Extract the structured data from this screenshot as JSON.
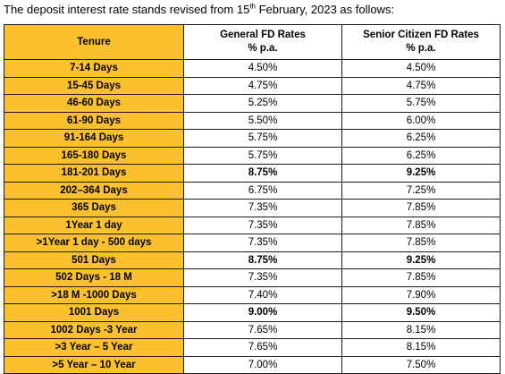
{
  "intro": {
    "before": "The deposit interest rate stands revised from 15",
    "sup": "th",
    "after": " February, 2023 as follows:"
  },
  "table": {
    "headers": {
      "tenure": "Tenure",
      "general_line1": "General FD Rates",
      "general_line2": "% p.a.",
      "senior_line1": "Senior Citizen FD Rates",
      "senior_line2": "% p.a."
    },
    "rows": [
      {
        "tenure": "7-14 Days",
        "general": "4.50%",
        "senior": "4.50%",
        "bold": false
      },
      {
        "tenure": "15-45 Days",
        "general": "4.75%",
        "senior": "4.75%",
        "bold": false
      },
      {
        "tenure": "46-60 Days",
        "general": "5.25%",
        "senior": "5.75%",
        "bold": false
      },
      {
        "tenure": "61-90 Days",
        "general": "5.50%",
        "senior": "6.00%",
        "bold": false
      },
      {
        "tenure": "91-164 Days",
        "general": "5.75%",
        "senior": "6.25%",
        "bold": false
      },
      {
        "tenure": "165-180 Days",
        "general": "5.75%",
        "senior": "6.25%",
        "bold": false
      },
      {
        "tenure": "181-201 Days",
        "general": "8.75%",
        "senior": "9.25%",
        "bold": true
      },
      {
        "tenure": "202–364 Days",
        "general": "6.75%",
        "senior": "7.25%",
        "bold": false
      },
      {
        "tenure": "365 Days",
        "general": "7.35%",
        "senior": "7.85%",
        "bold": false
      },
      {
        "tenure": "1Year 1 day",
        "general": "7.35%",
        "senior": "7.85%",
        "bold": false
      },
      {
        "tenure": ">1Year 1 day - 500 days",
        "general": "7.35%",
        "senior": "7.85%",
        "bold": false
      },
      {
        "tenure": "501 Days",
        "general": "8.75%",
        "senior": "9.25%",
        "bold": true
      },
      {
        "tenure": "502 Days - 18 M",
        "general": "7.35%",
        "senior": "7.85%",
        "bold": false
      },
      {
        "tenure": ">18 M -1000 Days",
        "general": "7.40%",
        "senior": "7.90%",
        "bold": false
      },
      {
        "tenure": "1001 Days",
        "general": "9.00%",
        "senior": "9.50%",
        "bold": true
      },
      {
        "tenure": "1002 Days -3 Year",
        "general": "7.65%",
        "senior": "8.15%",
        "bold": false
      },
      {
        "tenure": ">3 Year – 5 Year",
        "general": "7.65%",
        "senior": "8.15%",
        "bold": false
      },
      {
        "tenure": ">5 Year – 10 Year",
        "general": "7.00%",
        "senior": "7.50%",
        "bold": false
      }
    ]
  },
  "colors": {
    "header_fill": "#fbc02d",
    "border": "#1a1a1a"
  }
}
